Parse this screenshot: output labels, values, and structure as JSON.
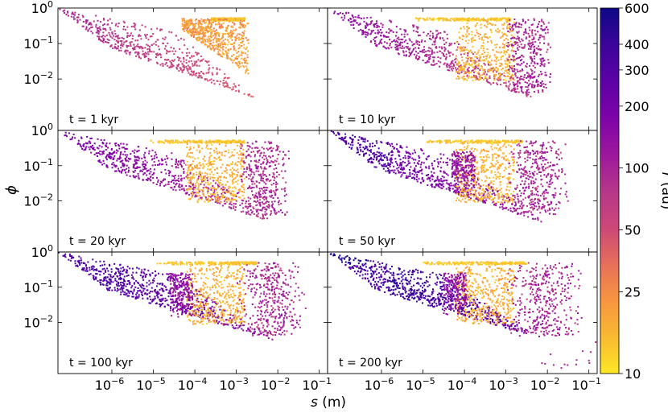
{
  "chart_data": {
    "type": "scatter",
    "xlabel": "s (m)",
    "ylabel": "ϕ",
    "x_scale": "log",
    "y_scale": "log",
    "xlim_exp": [
      -7.3,
      -0.8
    ],
    "ylim_exp": [
      -3.45,
      0
    ],
    "x_ticks": [
      {
        "exp": -6,
        "label_base": "10",
        "label_exp": "−6"
      },
      {
        "exp": -5,
        "label_base": "10",
        "label_exp": "−5"
      },
      {
        "exp": -4,
        "label_base": "10",
        "label_exp": "−4"
      },
      {
        "exp": -3,
        "label_base": "10",
        "label_exp": "−3"
      },
      {
        "exp": -2,
        "label_base": "10",
        "label_exp": "−2"
      },
      {
        "exp": -1,
        "label_base": "10",
        "label_exp": "−1"
      }
    ],
    "y_ticks": [
      {
        "exp": 0,
        "label_base": "10",
        "label_exp": "0"
      },
      {
        "exp": -1,
        "label_base": "10",
        "label_exp": "−1"
      },
      {
        "exp": -2,
        "label_base": "10",
        "label_exp": "−2"
      }
    ],
    "panels": [
      {
        "label": "t = 1 kyr",
        "stage": 0
      },
      {
        "label": "t = 10 kyr",
        "stage": 1
      },
      {
        "label": "t = 20 kyr",
        "stage": 2
      },
      {
        "label": "t = 50 kyr",
        "stage": 3
      },
      {
        "label": "t = 100 kyr",
        "stage": 4
      },
      {
        "label": "t = 200 kyr",
        "stage": 5
      }
    ],
    "colorbar": {
      "label": "r (au)",
      "scale": "log",
      "range": [
        10,
        600
      ],
      "ticks": [
        {
          "value": 600,
          "label": "600"
        },
        {
          "value": 400,
          "label": "400"
        },
        {
          "value": 300,
          "label": "300"
        },
        {
          "value": 200,
          "label": "200"
        },
        {
          "value": 100,
          "label": "100"
        },
        {
          "value": 50,
          "label": "50"
        },
        {
          "value": 25,
          "label": "25"
        },
        {
          "value": 10,
          "label": "10"
        }
      ],
      "colormap": [
        "#fde725",
        "#f9b931",
        "#f89540",
        "#e76f5a",
        "#cc4778",
        "#b5368a",
        "#9c179e",
        "#7e03a8",
        "#5c01a6",
        "#3b049a",
        "#0d0887"
      ]
    }
  }
}
